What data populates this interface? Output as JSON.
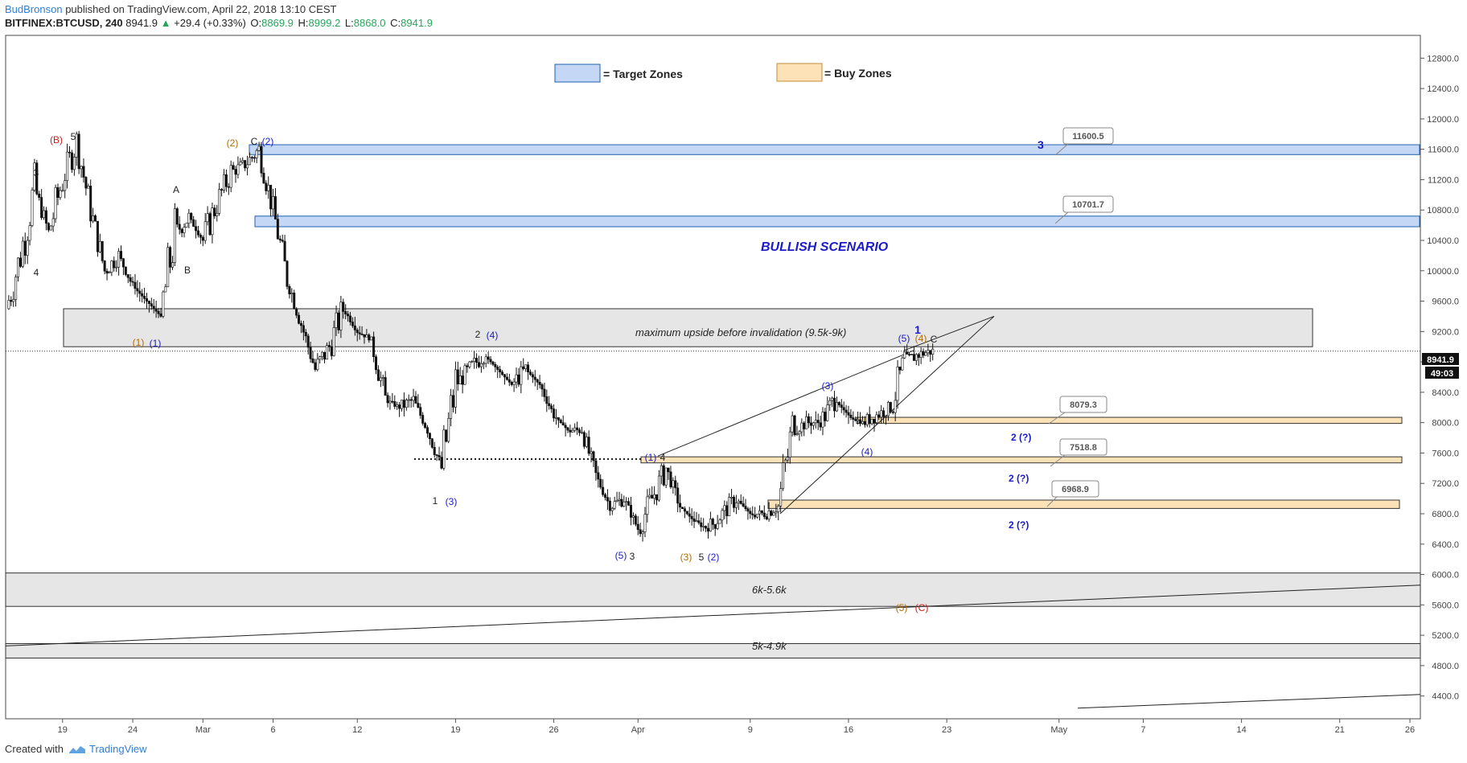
{
  "header": {
    "author": "BudBronson",
    "published": "published on TradingView.com, April 22, 2018 13:10 CEST",
    "symbol": "BITFINEX:BTCUSD, 240",
    "last": "8941.9",
    "change": "+29.4 (+0.33%)",
    "open_label": "O:",
    "open": "8869.9",
    "high_label": "H:",
    "high": "8999.2",
    "low_label": "L:",
    "low": "8868.0",
    "close_label": "C:",
    "close": "8941.9"
  },
  "footer": {
    "created_with": "Created with",
    "brand": "TradingView"
  },
  "colors": {
    "target_zone": "#c4d8f5",
    "target_border": "#2060b0",
    "buy_zone": "#fde2b8",
    "buy_border": "#c68a3a",
    "range_zone": "#e6e6e6",
    "wave_blue": "#1b1bc7",
    "wave_orange": "#b36b00",
    "wave_red": "#c81e1e"
  },
  "chart_data": {
    "type": "candlestick",
    "symbol": "BITFINEX:BTCUSD",
    "interval": "240",
    "ylim": [
      4100,
      13100
    ],
    "y_ticks": [
      "12800.0",
      "12400.0",
      "12000.0",
      "11600.0",
      "11200.0",
      "10800.0",
      "10400.0",
      "10000.0",
      "9600.0",
      "9200.0",
      "8800.0",
      "8400.0",
      "8000.0",
      "7600.0",
      "7200.0",
      "6800.0",
      "6400.0",
      "6000.0",
      "5600.0",
      "5200.0",
      "4800.0",
      "4400.0"
    ],
    "x_ticks": [
      "19",
      "24",
      "Mar",
      "6",
      "12",
      "19",
      "26",
      "Apr",
      "9",
      "16",
      "23",
      "May",
      "7",
      "14",
      "21",
      "26"
    ],
    "current_price_label": "8941.9",
    "countdown_label": "49:03",
    "price_path": [
      [
        "Feb 15",
        9500
      ],
      [
        "Feb 16",
        10200
      ],
      [
        "Feb 17",
        11100
      ],
      [
        "Feb 18",
        10500
      ],
      [
        "Feb 19",
        11200
      ],
      [
        "Feb 20",
        11700
      ],
      [
        "Feb 21",
        10800
      ],
      [
        "Feb 22",
        10000
      ],
      [
        "Feb 23",
        10200
      ],
      [
        "Feb 24",
        9800
      ],
      [
        "Feb 25",
        9600
      ],
      [
        "Feb 26",
        9400
      ],
      [
        "Feb 27",
        10500
      ],
      [
        "Feb 28",
        10700
      ],
      [
        "Mar 1",
        10400
      ],
      [
        "Mar 2",
        10900
      ],
      [
        "Mar 3",
        11300
      ],
      [
        "Mar 4",
        11400
      ],
      [
        "Mar 5",
        11600
      ],
      [
        "Mar 6",
        10800
      ],
      [
        "Mar 7",
        9900
      ],
      [
        "Mar 8",
        9300
      ],
      [
        "Mar 9",
        8700
      ],
      [
        "Mar 10",
        9000
      ],
      [
        "Mar 11",
        9500
      ],
      [
        "Mar 12",
        9200
      ],
      [
        "Mar 13",
        9100
      ],
      [
        "Mar 14",
        8300
      ],
      [
        "Mar 15",
        8200
      ],
      [
        "Mar 16",
        8300
      ],
      [
        "Mar 17",
        7900
      ],
      [
        "Mar 18",
        7400
      ],
      [
        "Mar 19",
        8500
      ],
      [
        "Mar 20",
        8700
      ],
      [
        "Mar 21",
        8900
      ],
      [
        "Mar 22",
        8700
      ],
      [
        "Mar 23",
        8500
      ],
      [
        "Mar 24",
        8700
      ],
      [
        "Mar 25",
        8500
      ],
      [
        "Mar 26",
        8100
      ],
      [
        "Mar 27",
        7900
      ],
      [
        "Mar 28",
        7900
      ],
      [
        "Mar 29",
        7300
      ],
      [
        "Mar 30",
        6900
      ],
      [
        "Mar 31",
        7000
      ],
      [
        "Apr 1",
        6600
      ],
      [
        "Apr 2",
        7000
      ],
      [
        "Apr 3",
        7400
      ],
      [
        "Apr 4",
        6900
      ],
      [
        "Apr 5",
        6700
      ],
      [
        "Apr 6",
        6600
      ],
      [
        "Apr 7",
        6800
      ],
      [
        "Apr 8",
        7000
      ],
      [
        "Apr 9",
        6800
      ],
      [
        "Apr 10",
        6800
      ],
      [
        "Apr 11",
        6900
      ],
      [
        "Apr 12",
        7900
      ],
      [
        "Apr 13",
        8000
      ],
      [
        "Apr 14",
        8000
      ],
      [
        "Apr 15",
        8300
      ],
      [
        "Apr 16",
        8100
      ],
      [
        "Apr 17",
        8000
      ],
      [
        "Apr 18",
        8100
      ],
      [
        "Apr 19",
        8200
      ],
      [
        "Apr 20",
        8800
      ],
      [
        "Apr 21",
        8900
      ],
      [
        "Apr 22",
        8941.9
      ]
    ],
    "legend": [
      {
        "label": "= Target Zones",
        "color": "#c4d8f5"
      },
      {
        "label": "= Buy Zones",
        "color": "#fde2b8"
      }
    ],
    "target_zones": [
      {
        "low": 11530,
        "high": 11660,
        "label": "11600.5",
        "wave": "3"
      },
      {
        "low": 10580,
        "high": 10720,
        "label": "10701.7"
      }
    ],
    "buy_zones": [
      {
        "low": 7990,
        "high": 8070,
        "label": "8079.3",
        "wave": "2 (?)"
      },
      {
        "low": 7470,
        "high": 7550,
        "label": "7518.8",
        "wave": "2 (?)"
      },
      {
        "low": 6870,
        "high": 6980,
        "label": "6968.9",
        "wave": "2 (?)"
      }
    ],
    "range_zones": [
      {
        "low": 9000,
        "high": 9500,
        "label": "maximum upside before invalidation (9.5k-9k)"
      },
      {
        "low": 5580,
        "high": 6020,
        "label": "6k-5.6k"
      },
      {
        "low": 4900,
        "high": 5090,
        "label": "5k-4.9k"
      }
    ],
    "scenario_label": "BULLISH SCENARIO",
    "wave_labels": [
      {
        "text": "(B)",
        "color": "red"
      },
      {
        "text": "5",
        "color": "black"
      },
      {
        "text": "3",
        "color": "black"
      },
      {
        "text": "4",
        "color": "black"
      },
      {
        "text": "A",
        "color": "black"
      },
      {
        "text": "B",
        "color": "black"
      },
      {
        "text": "(2)",
        "color": "orange"
      },
      {
        "text": "C",
        "color": "black"
      },
      {
        "text": "(2)",
        "color": "blue"
      },
      {
        "text": "(1)",
        "color": "orange"
      },
      {
        "text": "(1)",
        "color": "blue"
      },
      {
        "text": "2",
        "color": "black"
      },
      {
        "text": "(4)",
        "color": "blue"
      },
      {
        "text": "1",
        "color": "black"
      },
      {
        "text": "(3)",
        "color": "blue"
      },
      {
        "text": "(1)",
        "color": "blue"
      },
      {
        "text": "4",
        "color": "black"
      },
      {
        "text": "(5)",
        "color": "blue"
      },
      {
        "text": "3",
        "color": "black"
      },
      {
        "text": "(3)",
        "color": "orange"
      },
      {
        "text": "5",
        "color": "black"
      },
      {
        "text": "(2)",
        "color": "blue"
      },
      {
        "text": "(3)",
        "color": "blue"
      },
      {
        "text": "(4)",
        "color": "blue"
      },
      {
        "text": "(5)",
        "color": "blue"
      },
      {
        "text": "(4)",
        "color": "orange"
      },
      {
        "text": "C",
        "color": "black"
      },
      {
        "text": "1",
        "color": "blue"
      },
      {
        "text": "(5)",
        "color": "orange"
      },
      {
        "text": "(C)",
        "color": "red"
      }
    ]
  }
}
